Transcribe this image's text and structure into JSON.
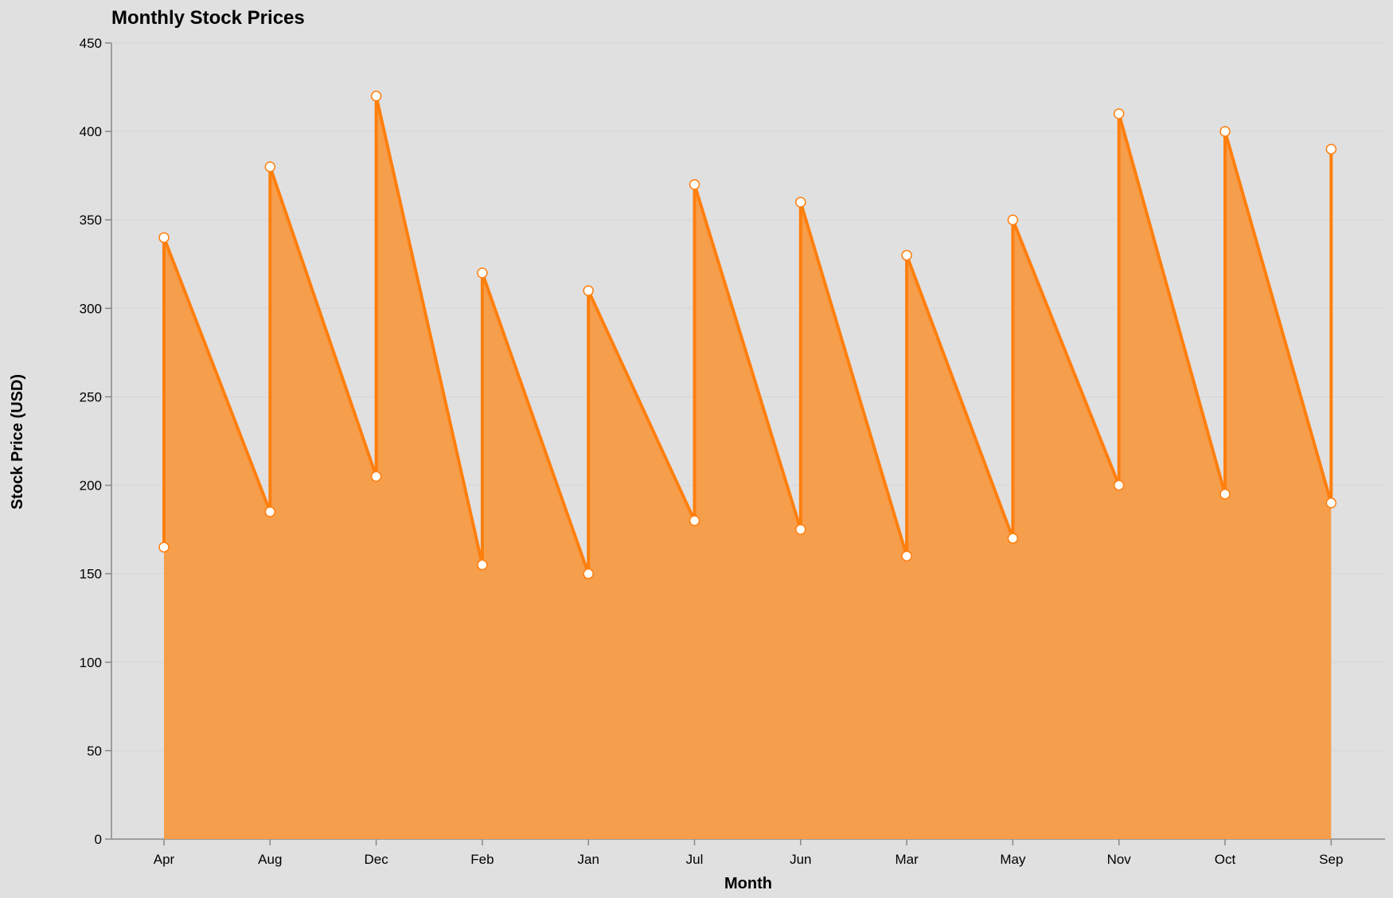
{
  "chart_data": {
    "type": "area",
    "title": "Monthly Stock Prices",
    "xlabel": "Month",
    "ylabel": "Stock Price (USD)",
    "ylim": [
      0,
      450
    ],
    "yticks": [
      0,
      50,
      100,
      150,
      200,
      250,
      300,
      350,
      400,
      450
    ],
    "grid": true,
    "categories": [
      "Apr",
      "Aug",
      "Dec",
      "Feb",
      "Jan",
      "Jul",
      "Jun",
      "Mar",
      "May",
      "Nov",
      "Oct",
      "Sep"
    ],
    "low": [
      165,
      185,
      205,
      155,
      150,
      180,
      175,
      160,
      170,
      200,
      195,
      190
    ],
    "high": [
      340,
      380,
      420,
      320,
      310,
      370,
      360,
      330,
      350,
      410,
      400,
      390
    ],
    "colors": {
      "area": "#f59e4c",
      "line": "#ff7f0e",
      "point": "#ffffff",
      "background": "#e0e0e0"
    }
  }
}
